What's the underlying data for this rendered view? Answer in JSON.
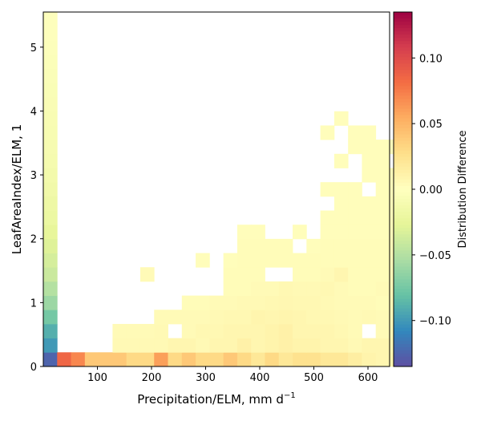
{
  "chart_data": {
    "type": "heatmap",
    "title": "",
    "xlabel": "Precipitation/ELM,  mm d",
    "xlabel_sup": "−1",
    "ylabel": "LeafAreaIndex/ELM,  1",
    "xlim": [
      0,
      640
    ],
    "ylim": [
      0,
      5.55
    ],
    "x_bin_width": 25.6,
    "y_bin_width": 0.222,
    "x_ticks": [
      100,
      200,
      300,
      400,
      500,
      600
    ],
    "y_ticks": [
      0,
      1,
      2,
      3,
      4,
      5
    ],
    "colorbar": {
      "label": "Distribution Difference",
      "range": [
        -0.135,
        0.135
      ],
      "ticks": [
        0.1,
        0.05,
        0.0,
        -0.05,
        -0.1
      ],
      "tick_labels": [
        "0.10",
        "0.05",
        "0.00",
        "−0.05",
        "−0.10"
      ],
      "colormap": "Spectral_r"
    },
    "first_column_values": [
      -0.125,
      -0.1,
      -0.09,
      -0.075,
      -0.06,
      -0.05,
      -0.04,
      -0.035,
      -0.03,
      -0.025,
      -0.02,
      -0.018,
      -0.015,
      -0.013,
      -0.011,
      -0.01,
      -0.009,
      -0.008,
      -0.007,
      -0.006,
      -0.005,
      -0.004,
      -0.003,
      -0.002,
      -0.002
    ],
    "bottom_row_values": [
      -0.125,
      0.085,
      0.07,
      0.04,
      0.04,
      0.04,
      0.03,
      0.03,
      0.06,
      0.03,
      0.04,
      0.03,
      0.03,
      0.04,
      0.03,
      0.02,
      0.03,
      0.02,
      0.025,
      0.025,
      0.02,
      0.02,
      0.015,
      0.01,
      0.008,
      0.008
    ],
    "cells": [
      [
        5,
        1,
        0.005
      ],
      [
        6,
        1,
        0.005
      ],
      [
        7,
        1,
        0.005
      ],
      [
        8,
        1,
        0.005
      ],
      [
        9,
        1,
        0.008
      ],
      [
        10,
        1,
        0.008
      ],
      [
        11,
        1,
        0.005
      ],
      [
        12,
        1,
        0.008
      ],
      [
        13,
        1,
        0.008
      ],
      [
        14,
        1,
        0.012
      ],
      [
        15,
        1,
        0.008
      ],
      [
        16,
        1,
        0.01
      ],
      [
        17,
        1,
        0.012
      ],
      [
        18,
        1,
        0.01
      ],
      [
        19,
        1,
        0.01
      ],
      [
        20,
        1,
        0.008
      ],
      [
        21,
        1,
        0.008
      ],
      [
        22,
        1,
        0.005
      ],
      [
        23,
        1,
        0.008
      ],
      [
        24,
        1,
        0.008
      ],
      [
        25,
        1,
        0.005
      ],
      [
        5,
        2,
        0.004
      ],
      [
        6,
        2,
        0.004
      ],
      [
        7,
        2,
        0.004
      ],
      [
        8,
        2,
        0.005
      ],
      [
        10,
        2,
        0.004
      ],
      [
        11,
        2,
        0.006
      ],
      [
        12,
        2,
        0.006
      ],
      [
        13,
        2,
        0.008
      ],
      [
        14,
        2,
        0.008
      ],
      [
        15,
        2,
        0.008
      ],
      [
        16,
        2,
        0.01
      ],
      [
        17,
        2,
        0.012
      ],
      [
        18,
        2,
        0.008
      ],
      [
        19,
        2,
        0.008
      ],
      [
        20,
        2,
        0.008
      ],
      [
        21,
        2,
        0.006
      ],
      [
        22,
        2,
        0.004
      ],
      [
        24,
        2,
        0.004
      ],
      [
        25,
        2,
        0.004
      ],
      [
        8,
        3,
        0.004
      ],
      [
        9,
        3,
        0.004
      ],
      [
        10,
        3,
        0.004
      ],
      [
        11,
        3,
        0.004
      ],
      [
        12,
        3,
        0.005
      ],
      [
        13,
        3,
        0.006
      ],
      [
        14,
        3,
        0.006
      ],
      [
        15,
        3,
        0.009
      ],
      [
        16,
        3,
        0.008
      ],
      [
        17,
        3,
        0.009
      ],
      [
        18,
        3,
        0.008
      ],
      [
        19,
        3,
        0.006
      ],
      [
        20,
        3,
        0.006
      ],
      [
        21,
        3,
        0.005
      ],
      [
        22,
        3,
        0.004
      ],
      [
        23,
        3,
        0.005
      ],
      [
        24,
        3,
        0.004
      ],
      [
        25,
        3,
        0.003
      ],
      [
        10,
        4,
        0.003
      ],
      [
        11,
        4,
        0.003
      ],
      [
        12,
        4,
        0.004
      ],
      [
        13,
        4,
        0.004
      ],
      [
        14,
        4,
        0.005
      ],
      [
        15,
        4,
        0.005
      ],
      [
        16,
        4,
        0.006
      ],
      [
        17,
        4,
        0.007
      ],
      [
        18,
        4,
        0.006
      ],
      [
        19,
        4,
        0.006
      ],
      [
        20,
        4,
        0.005
      ],
      [
        21,
        4,
        0.004
      ],
      [
        22,
        4,
        0.004
      ],
      [
        23,
        4,
        0.004
      ],
      [
        24,
        4,
        0.003
      ],
      [
        25,
        4,
        0.003
      ],
      [
        13,
        5,
        0.003
      ],
      [
        14,
        5,
        0.003
      ],
      [
        15,
        5,
        0.004
      ],
      [
        16,
        5,
        0.004
      ],
      [
        17,
        5,
        0.006
      ],
      [
        18,
        5,
        0.005
      ],
      [
        19,
        5,
        0.005
      ],
      [
        20,
        5,
        0.006
      ],
      [
        21,
        5,
        0.004
      ],
      [
        22,
        5,
        0.003
      ],
      [
        23,
        5,
        0.003
      ],
      [
        24,
        5,
        0.004
      ],
      [
        25,
        5,
        0.003
      ],
      [
        7,
        6,
        0.004
      ],
      [
        13,
        6,
        0.003
      ],
      [
        14,
        6,
        0.003
      ],
      [
        15,
        6,
        0.003
      ],
      [
        18,
        6,
        0.003
      ],
      [
        19,
        6,
        0.003
      ],
      [
        20,
        6,
        0.004
      ],
      [
        21,
        6,
        0.008
      ],
      [
        22,
        6,
        0.003
      ],
      [
        23,
        6,
        0.003
      ],
      [
        24,
        6,
        0.003
      ],
      [
        25,
        6,
        0.003
      ],
      [
        11,
        7,
        0.002
      ],
      [
        13,
        7,
        0.002
      ],
      [
        14,
        7,
        0.003
      ],
      [
        15,
        7,
        0.003
      ],
      [
        16,
        7,
        0.003
      ],
      [
        17,
        7,
        0.003
      ],
      [
        18,
        7,
        0.003
      ],
      [
        19,
        7,
        0.003
      ],
      [
        20,
        7,
        0.003
      ],
      [
        21,
        7,
        0.003
      ],
      [
        22,
        7,
        0.003
      ],
      [
        23,
        7,
        0.003
      ],
      [
        24,
        7,
        0.003
      ],
      [
        25,
        7,
        0.003
      ],
      [
        14,
        8,
        0.003
      ],
      [
        15,
        8,
        0.003
      ],
      [
        16,
        8,
        0.003
      ],
      [
        17,
        8,
        0.003
      ],
      [
        19,
        8,
        0.002
      ],
      [
        20,
        8,
        0.003
      ],
      [
        21,
        8,
        0.003
      ],
      [
        22,
        8,
        0.003
      ],
      [
        23,
        8,
        0.003
      ],
      [
        24,
        8,
        0.003
      ],
      [
        25,
        8,
        0.003
      ],
      [
        14,
        9,
        0.002
      ],
      [
        15,
        9,
        0.002
      ],
      [
        18,
        9,
        0.002
      ],
      [
        20,
        9,
        0.002
      ],
      [
        21,
        9,
        0.002
      ],
      [
        22,
        9,
        0.002
      ],
      [
        23,
        9,
        0.002
      ],
      [
        24,
        9,
        0.002
      ],
      [
        25,
        9,
        0.002
      ],
      [
        20,
        10,
        0.002
      ],
      [
        21,
        10,
        0.002
      ],
      [
        22,
        10,
        0.002
      ],
      [
        23,
        10,
        0.002
      ],
      [
        24,
        10,
        0.002
      ],
      [
        25,
        10,
        0.002
      ],
      [
        21,
        11,
        0.002
      ],
      [
        22,
        11,
        0.002
      ],
      [
        23,
        11,
        0.002
      ],
      [
        24,
        11,
        0.002
      ],
      [
        25,
        11,
        0.002
      ],
      [
        20,
        12,
        0.002
      ],
      [
        21,
        12,
        0.002
      ],
      [
        22,
        12,
        0.002
      ],
      [
        24,
        12,
        0.002
      ],
      [
        25,
        12,
        0.002
      ],
      [
        23,
        13,
        0.002
      ],
      [
        24,
        13,
        0.002
      ],
      [
        25,
        13,
        0.002
      ],
      [
        21,
        14,
        0.002
      ],
      [
        23,
        14,
        0.002
      ],
      [
        24,
        14,
        0.002
      ],
      [
        22,
        15,
        0.002
      ],
      [
        23,
        15,
        0.002
      ],
      [
        24,
        15,
        0.002
      ],
      [
        25,
        15,
        0.002
      ],
      [
        20,
        16,
        0.002
      ],
      [
        22,
        16,
        0.002
      ],
      [
        23,
        16,
        0.002
      ],
      [
        21,
        17,
        0.002
      ]
    ]
  }
}
